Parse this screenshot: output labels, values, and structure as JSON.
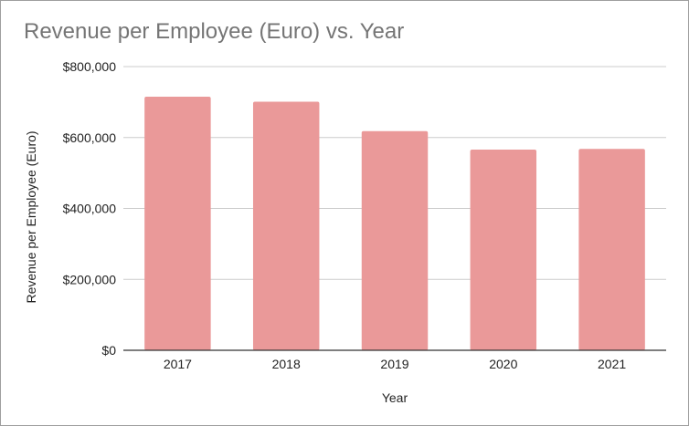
{
  "chart_data": {
    "type": "bar",
    "title": "Revenue per Employee (Euro) vs. Year",
    "xlabel": "Year",
    "ylabel": "Revenue per Employee (Euro)",
    "categories": [
      "2017",
      "2018",
      "2019",
      "2020",
      "2021"
    ],
    "values": [
      715000,
      701000,
      618000,
      566000,
      568000
    ],
    "ylim": [
      0,
      800000
    ],
    "yticks": [
      0,
      200000,
      400000,
      600000,
      800000
    ],
    "ytick_labels": [
      "$0",
      "$200,000",
      "$400,000",
      "$600,000",
      "$800,000"
    ],
    "grid": true,
    "legend": "none",
    "colors": {
      "bar": "#ea9999",
      "grid": "#cccccc",
      "axis": "#333333",
      "title": "#757575"
    }
  }
}
